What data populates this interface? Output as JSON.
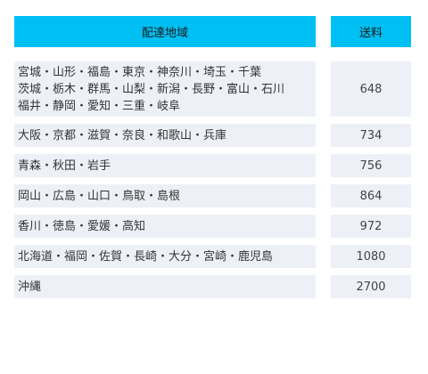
{
  "header": {
    "region_label": "配達地域",
    "fee_label": "送料"
  },
  "rows": [
    {
      "region": "宮城・山形・福島・東京・神奈川・埼玉・千葉\n茨城・栃木・群馬・山梨・新潟・長野・富山・石川\n福井・静岡・愛知・三重・岐阜",
      "fee": "648"
    },
    {
      "region": "大阪・京都・滋賀・奈良・和歌山・兵庫",
      "fee": "734"
    },
    {
      "region": "青森・秋田・岩手",
      "fee": "756"
    },
    {
      "region": "岡山・広島・山口・鳥取・島根",
      "fee": "864"
    },
    {
      "region": "香川・徳島・愛媛・高知",
      "fee": "972"
    },
    {
      "region": "北海道・福岡・佐賀・長崎・大分・宮崎・鹿児島",
      "fee": "1080"
    },
    {
      "region": "沖縄",
      "fee": "2700"
    }
  ],
  "colors": {
    "header_bg": "#00bff3",
    "row_bg": "#edf1f7"
  }
}
